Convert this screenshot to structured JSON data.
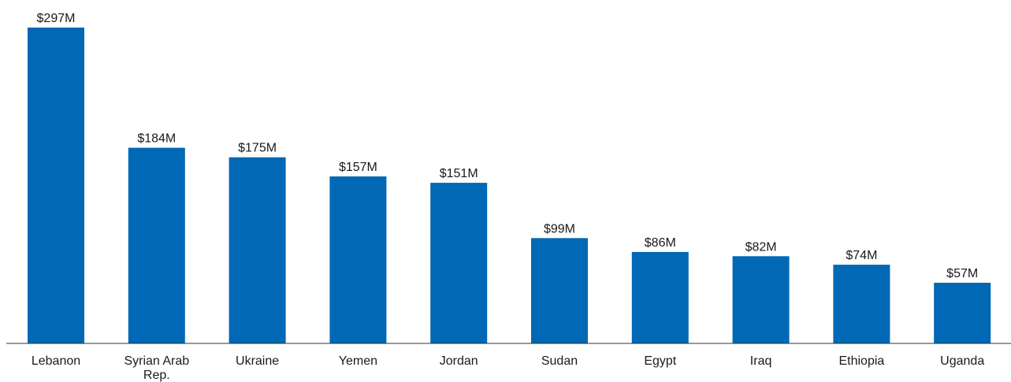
{
  "chart_data": {
    "type": "bar",
    "categories": [
      "Lebanon",
      "Syrian Arab Rep.",
      "Ukraine",
      "Yemen",
      "Jordan",
      "Sudan",
      "Egypt",
      "Iraq",
      "Ethiopia",
      "Uganda"
    ],
    "values": [
      297,
      184,
      175,
      157,
      151,
      99,
      86,
      82,
      74,
      57
    ],
    "value_labels": [
      "$297M",
      "$184M",
      "$175M",
      "$157M",
      "$151M",
      "$99M",
      "$86M",
      "$82M",
      "$74M",
      "$57M"
    ],
    "ylim": [
      0,
      297
    ],
    "grid": false,
    "bar_color": "#0068b4"
  }
}
